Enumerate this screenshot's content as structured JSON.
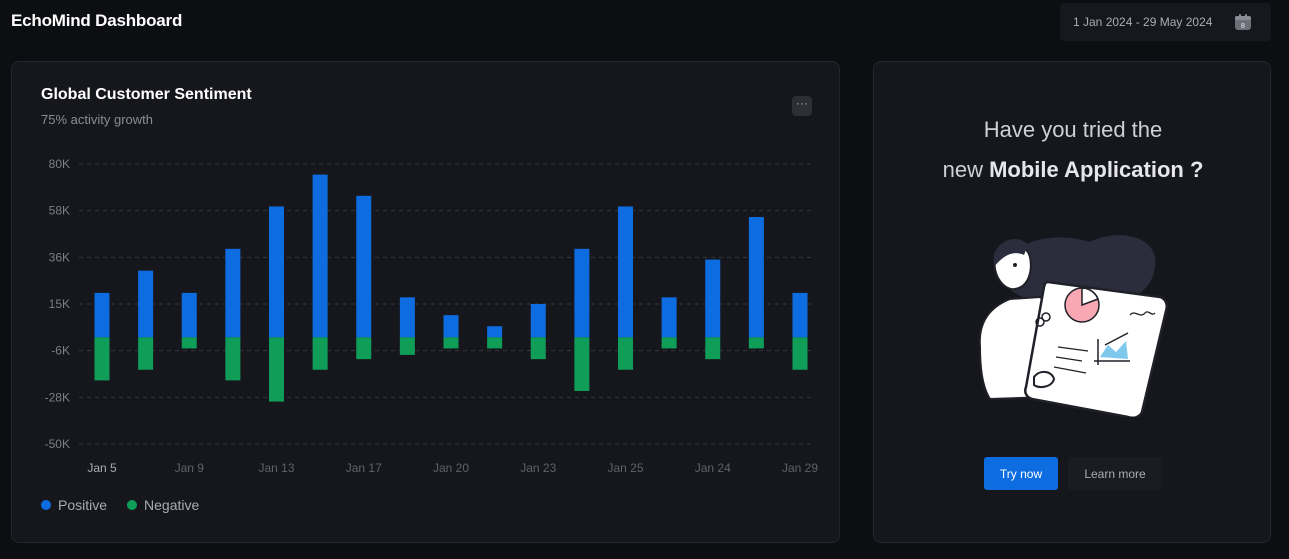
{
  "header": {
    "title": "EchoMind Dashboard",
    "date_range": "1 Jan 2024 - 29 May 2024",
    "calendar_day": "8"
  },
  "sentiment_card": {
    "title": "Global Customer Sentiment",
    "subtitle": "75% activity growth",
    "more_label": "···",
    "legend": [
      {
        "label": "Positive",
        "color": "#0c6ce0"
      },
      {
        "label": "Negative",
        "color": "#0f9d58"
      }
    ]
  },
  "chart_data": {
    "type": "bar",
    "stacked": true,
    "y_ticks": [
      "80K",
      "58K",
      "36K",
      "15K",
      "-6K",
      "-28K",
      "-50K"
    ],
    "y_tick_values": [
      80,
      58,
      36,
      15,
      -6,
      -28,
      -50
    ],
    "x_tick_labels": [
      "Jan 5",
      "Jan 9",
      "Jan 13",
      "Jan 17",
      "Jan 20",
      "Jan 23",
      "Jan 25",
      "Jan 24",
      "Jan 29"
    ],
    "ylim": [
      -50,
      80
    ],
    "grid": true,
    "legend_position": "bottom-left",
    "series": [
      {
        "name": "Positive",
        "color": "#0c6ce0",
        "values": [
          20,
          30,
          20,
          40,
          60,
          75,
          65,
          18,
          10,
          5,
          15,
          40,
          60,
          18,
          35,
          55,
          20
        ]
      },
      {
        "name": "Negative",
        "color": "#0f9d58",
        "values": [
          -20,
          -15,
          -5,
          -20,
          -30,
          -15,
          -10,
          -8,
          -5,
          -5,
          -10,
          -25,
          -15,
          -5,
          -10,
          -5,
          -15
        ]
      }
    ]
  },
  "promo": {
    "line1": "Have you tried the",
    "line2_prefix": "new ",
    "line2_bold": "Mobile Application ?",
    "primary_button": "Try now",
    "secondary_button": "Learn more"
  }
}
